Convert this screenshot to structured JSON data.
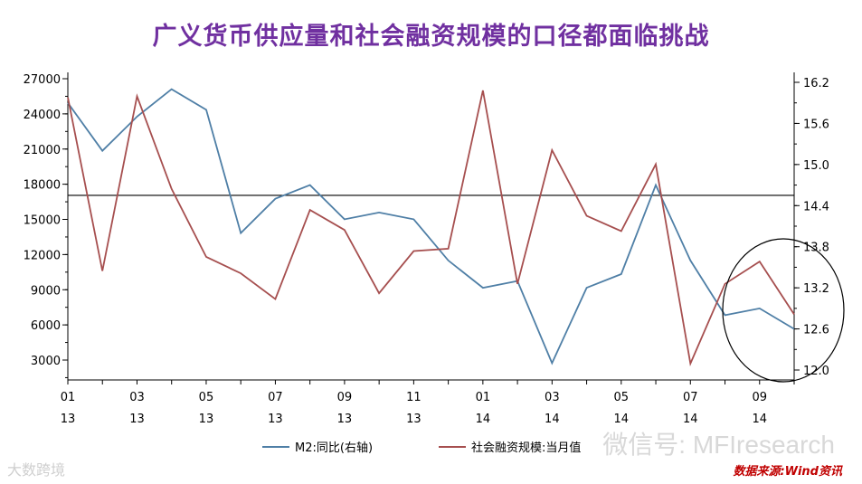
{
  "title": "广义货币供应量和社会融资规模的口径都面临挑战",
  "source": "数据来源:Wind资讯",
  "watermarks": {
    "right": "微信号: MFIresearch",
    "left": "大数跨境"
  },
  "colors": {
    "m2": "#4f7fa6",
    "social": "#a64f4f",
    "ref": "#000000",
    "title": "#7030a0"
  },
  "chart_data": {
    "type": "line",
    "categories": [
      "01\n13",
      "02\n13",
      "03\n13",
      "04\n13",
      "05\n13",
      "06\n13",
      "07\n13",
      "08\n13",
      "09\n13",
      "10\n13",
      "11\n13",
      "12\n13",
      "01\n14",
      "02\n14",
      "03\n14",
      "04\n14",
      "05\n14",
      "06\n14",
      "07\n14",
      "08\n14",
      "09\n14",
      "10\n14"
    ],
    "x_tick_labels": [
      {
        "index": 0,
        "top": "01",
        "bottom": "13"
      },
      {
        "index": 2,
        "top": "03",
        "bottom": "13"
      },
      {
        "index": 4,
        "top": "05",
        "bottom": "13"
      },
      {
        "index": 6,
        "top": "07",
        "bottom": "13"
      },
      {
        "index": 8,
        "top": "09",
        "bottom": "13"
      },
      {
        "index": 10,
        "top": "11",
        "bottom": "13"
      },
      {
        "index": 12,
        "top": "01",
        "bottom": "14"
      },
      {
        "index": 14,
        "top": "03",
        "bottom": "14"
      },
      {
        "index": 16,
        "top": "05",
        "bottom": "14"
      },
      {
        "index": 18,
        "top": "07",
        "bottom": "14"
      },
      {
        "index": 20,
        "top": "09",
        "bottom": "14"
      }
    ],
    "left_axis": {
      "ylim": [
        1500,
        27000
      ],
      "ticks": [
        3000,
        6000,
        9000,
        12000,
        15000,
        18000,
        21000,
        24000,
        27000
      ]
    },
    "right_axis": {
      "ylim": [
        12.0,
        16.2
      ],
      "ticks": [
        12.0,
        12.6,
        13.2,
        13.8,
        14.4,
        15.0,
        15.6,
        16.2
      ]
    },
    "reference_line": {
      "axis": "right",
      "value": 14.55
    },
    "series": [
      {
        "name": "M2:同比(右轴)",
        "axis": "right",
        "values": [
          15.9,
          15.2,
          15.7,
          16.1,
          15.8,
          14.0,
          14.5,
          14.7,
          14.2,
          14.3,
          14.2,
          13.6,
          13.2,
          13.3,
          12.1,
          13.2,
          13.4,
          14.7,
          13.6,
          12.8,
          12.9,
          12.6
        ]
      },
      {
        "name": "社会融资规模:当月值",
        "axis": "left",
        "values": [
          25400,
          10600,
          25500,
          17600,
          11800,
          10400,
          8200,
          15800,
          14100,
          8700,
          12300,
          12500,
          26000,
          9500,
          20900,
          15300,
          14000,
          19700,
          2700,
          9500,
          11400,
          6900
        ]
      }
    ],
    "annotation": {
      "shape": "ellipse",
      "around_indices": [
        19,
        21
      ]
    },
    "legend": {
      "position": "bottom"
    }
  }
}
